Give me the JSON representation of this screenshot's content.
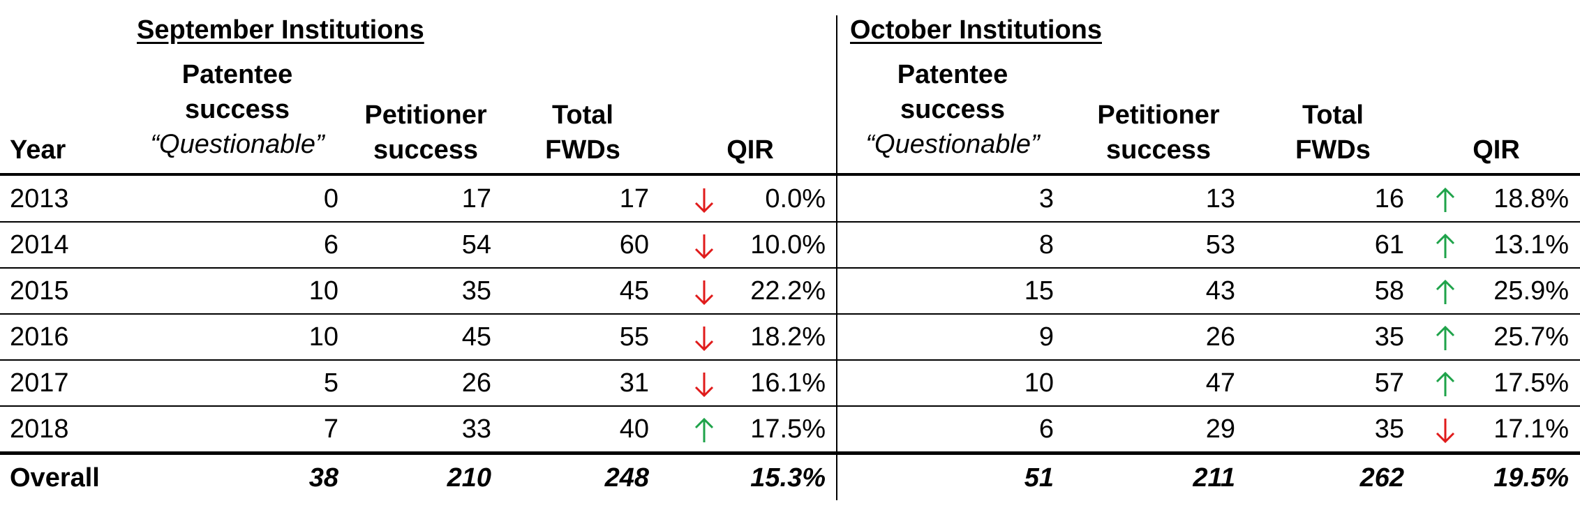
{
  "september": {
    "title": "September Institutions",
    "headers": {
      "year": "Year",
      "patentee": [
        "Patentee",
        "success",
        "“Questionable”"
      ],
      "petitioner": [
        "Petitioner",
        "success"
      ],
      "total": [
        "Total",
        "FWDs"
      ],
      "qir": "QIR"
    },
    "rows": [
      {
        "year": "2013",
        "patentee": "0",
        "petitioner": "17",
        "total": "17",
        "trend": "down",
        "qir": "0.0%"
      },
      {
        "year": "2014",
        "patentee": "6",
        "petitioner": "54",
        "total": "60",
        "trend": "down",
        "qir": "10.0%"
      },
      {
        "year": "2015",
        "patentee": "10",
        "petitioner": "35",
        "total": "45",
        "trend": "down",
        "qir": "22.2%"
      },
      {
        "year": "2016",
        "patentee": "10",
        "petitioner": "45",
        "total": "55",
        "trend": "down",
        "qir": "18.2%"
      },
      {
        "year": "2017",
        "patentee": "5",
        "petitioner": "26",
        "total": "31",
        "trend": "down",
        "qir": "16.1%"
      },
      {
        "year": "2018",
        "patentee": "7",
        "petitioner": "33",
        "total": "40",
        "trend": "up",
        "qir": "17.5%"
      }
    ],
    "overall": {
      "label": "Overall",
      "patentee": "38",
      "petitioner": "210",
      "total": "248",
      "qir": "15.3%"
    }
  },
  "october": {
    "title": "October Institutions",
    "headers": {
      "patentee": [
        "Patentee",
        "success",
        "“Questionable”"
      ],
      "petitioner": [
        "Petitioner",
        "success"
      ],
      "total": [
        "Total",
        "FWDs"
      ],
      "qir": "QIR"
    },
    "rows": [
      {
        "patentee": "3",
        "petitioner": "13",
        "total": "16",
        "trend": "up",
        "qir": "18.8%"
      },
      {
        "patentee": "8",
        "petitioner": "53",
        "total": "61",
        "trend": "up",
        "qir": "13.1%"
      },
      {
        "patentee": "15",
        "petitioner": "43",
        "total": "58",
        "trend": "up",
        "qir": "25.9%"
      },
      {
        "patentee": "9",
        "petitioner": "26",
        "total": "35",
        "trend": "up",
        "qir": "25.7%"
      },
      {
        "patentee": "10",
        "petitioner": "47",
        "total": "57",
        "trend": "up",
        "qir": "17.5%"
      },
      {
        "patentee": "6",
        "petitioner": "29",
        "total": "35",
        "trend": "down",
        "qir": "17.1%"
      }
    ],
    "overall": {
      "patentee": "51",
      "petitioner": "211",
      "total": "262",
      "qir": "19.5%"
    }
  },
  "colors": {
    "up": "#1fa34a",
    "down": "#e01b1b",
    "rule": "#000000"
  },
  "icons": {
    "up": "arrow-up-icon",
    "down": "arrow-down-icon"
  }
}
